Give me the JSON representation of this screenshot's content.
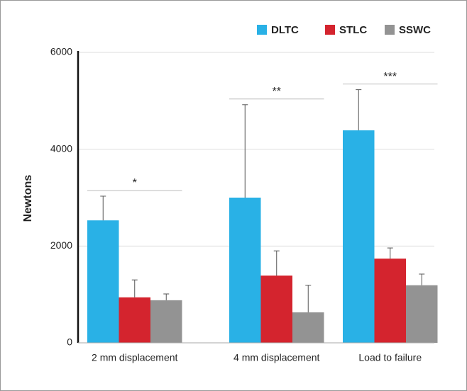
{
  "chart_data": {
    "type": "bar",
    "ylabel": "Newtons",
    "categories": [
      "2 mm displacement",
      "4 mm displacement",
      "Load to failure"
    ],
    "series": [
      {
        "name": "DLTC",
        "color": "#29b1e6",
        "values": [
          2530,
          3000,
          4390
        ],
        "errors": [
          500,
          1920,
          840
        ]
      },
      {
        "name": "STLC",
        "color": "#d4242e",
        "values": [
          940,
          1390,
          1740
        ],
        "errors": [
          360,
          510,
          220
        ]
      },
      {
        "name": "SSWC",
        "color": "#939393",
        "values": [
          880,
          630,
          1190
        ],
        "errors": [
          130,
          560,
          230
        ]
      }
    ],
    "annotations": [
      {
        "text": "*"
      },
      {
        "text": "**"
      },
      {
        "text": "***"
      }
    ],
    "ylim": [
      0,
      6000
    ],
    "yticks": [
      0,
      2000,
      4000,
      6000
    ],
    "grid": true
  }
}
